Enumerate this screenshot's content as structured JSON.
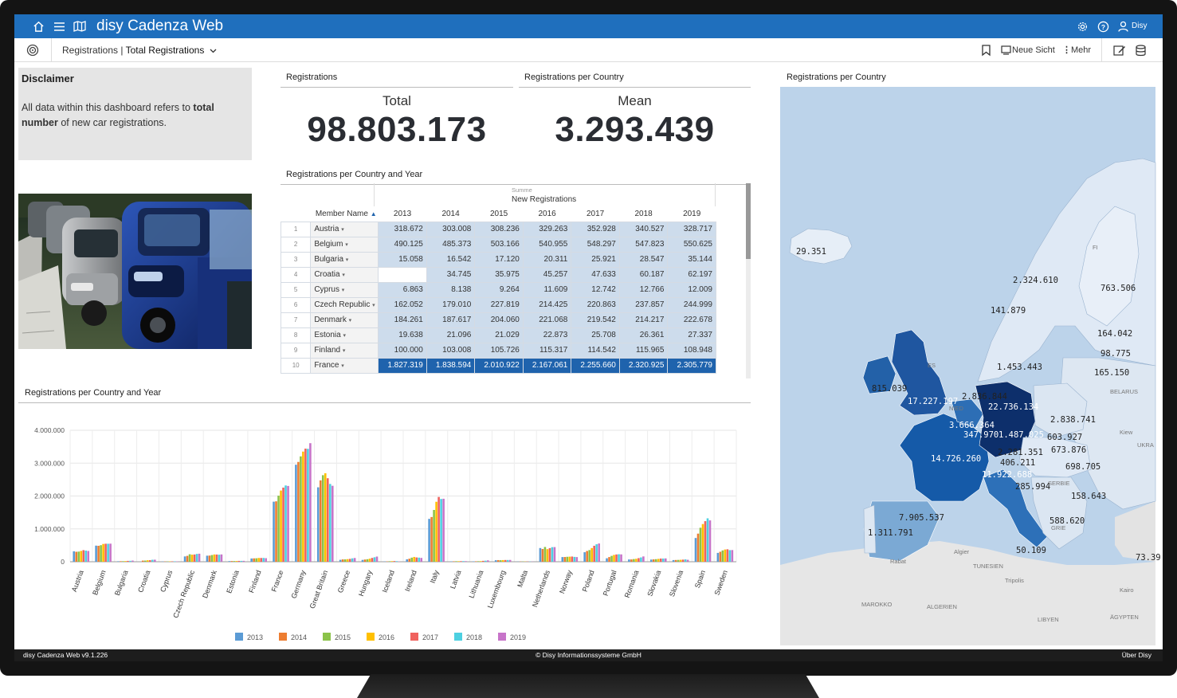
{
  "app": {
    "title": "disy Cadenza Web",
    "user": "Disy"
  },
  "breadcrumb": {
    "parent": "Registrations",
    "current": "Total Registrations"
  },
  "toolbar": {
    "new_view": "Neue Sicht",
    "more": "Mehr"
  },
  "disclaimer": {
    "title": "Disclaimer",
    "text_pre": "All data within this dashboard refers to ",
    "text_bold1": "total",
    "text_bold2": "number",
    "text_post": " of new car registrations."
  },
  "kpis": {
    "left": {
      "panel_title": "Registrations",
      "label": "Total",
      "value": "98.803.173"
    },
    "right": {
      "panel_title": "Registrations per Country",
      "label": "Mean",
      "value": "3.293.439"
    }
  },
  "table": {
    "panel_title": "Registrations per Country and Year",
    "aggregation": "Summe",
    "measure": "New Registrations",
    "member_header": "Member Name",
    "years": [
      "2013",
      "2014",
      "2015",
      "2016",
      "2017",
      "2018",
      "2019"
    ],
    "rows": [
      {
        "idx": "1",
        "name": "Austria",
        "values": [
          "318.672",
          "303.008",
          "308.236",
          "329.263",
          "352.928",
          "340.527",
          "328.717"
        ]
      },
      {
        "idx": "2",
        "name": "Belgium",
        "values": [
          "490.125",
          "485.373",
          "503.166",
          "540.955",
          "548.297",
          "547.823",
          "550.625"
        ]
      },
      {
        "idx": "3",
        "name": "Bulgaria",
        "values": [
          "15.058",
          "16.542",
          "17.120",
          "20.311",
          "25.921",
          "28.547",
          "35.144"
        ]
      },
      {
        "idx": "4",
        "name": "Croatia",
        "values": [
          "",
          "34.745",
          "35.975",
          "45.257",
          "47.633",
          "60.187",
          "62.197"
        ]
      },
      {
        "idx": "5",
        "name": "Cyprus",
        "values": [
          "6.863",
          "8.138",
          "9.264",
          "11.609",
          "12.742",
          "12.766",
          "12.009"
        ]
      },
      {
        "idx": "6",
        "name": "Czech Republic",
        "values": [
          "162.052",
          "179.010",
          "227.819",
          "214.425",
          "220.863",
          "237.857",
          "244.999"
        ]
      },
      {
        "idx": "7",
        "name": "Denmark",
        "values": [
          "184.261",
          "187.617",
          "204.060",
          "221.068",
          "219.542",
          "214.217",
          "222.678"
        ]
      },
      {
        "idx": "8",
        "name": "Estonia",
        "values": [
          "19.638",
          "21.096",
          "21.029",
          "22.873",
          "25.708",
          "26.361",
          "27.337"
        ]
      },
      {
        "idx": "9",
        "name": "Finland",
        "values": [
          "100.000",
          "103.008",
          "105.726",
          "115.317",
          "114.542",
          "115.965",
          "108.948"
        ]
      },
      {
        "idx": "10",
        "name": "France",
        "values": [
          "1.827.319",
          "1.838.594",
          "2.010.922",
          "2.167.061",
          "2.255.660",
          "2.320.925",
          "2.305.779"
        ],
        "highlight": true
      }
    ]
  },
  "chart_panel_title": "Registrations per Country and Year",
  "map_panel_title": "Registrations per Country",
  "map_labels": [
    "29.351",
    "2.324.610",
    "763.506",
    "141.879",
    "164.042",
    "98.775",
    "165.150",
    "1.453.443",
    "815.039",
    "2.836.844",
    "17.227.197",
    "22.736.134",
    "2.838.741",
    "3.666.364",
    "347.970",
    "1.487.025",
    "603.927",
    "2.281.351",
    "673.876",
    "14.726.260",
    "406.211",
    "698.705",
    "11.922.688",
    "285.994",
    "158.643",
    "7.905.537",
    "588.620",
    "1.311.791",
    "50.109",
    "73.39"
  ],
  "map_place_labels": [
    "FI",
    "ES",
    "NIED",
    "BELARUS",
    "UKRA",
    "SERBIE",
    "GRIE",
    "TUNESIEN",
    "ALGERIEN",
    "MAROKKO",
    "LIBYEN",
    "ÄGYPTEN",
    "Kairo",
    "Rabat",
    "Algier",
    "Tripolis",
    "Kiew"
  ],
  "footer": {
    "version": "disy Cadenza Web v9.1.226",
    "copyright": "© Disy Informationssysteme GmbH",
    "about": "Über Disy"
  },
  "chart_data": {
    "type": "bar",
    "categories": [
      "Austria",
      "Belgium",
      "Bulgaria",
      "Croatia",
      "Cyprus",
      "Czech Republic",
      "Denmark",
      "Estonia",
      "Finland",
      "France",
      "Germany",
      "Great Britain",
      "Greece",
      "Hungary",
      "Iceland",
      "Ireland",
      "Italy",
      "Latvia",
      "Lithuania",
      "Luxembourg",
      "Malta",
      "Netherlands",
      "Norway",
      "Poland",
      "Portugal",
      "Romania",
      "Slovakia",
      "Slovenia",
      "Spain",
      "Sweden"
    ],
    "ylim": [
      0,
      4000000
    ],
    "yticks": [
      "0",
      "1.000.000",
      "2.000.000",
      "3.000.000",
      "4.000.000"
    ],
    "legend_position": "bottom",
    "grid": true,
    "series": [
      {
        "name": "2013",
        "color": "#5b9bd5",
        "values": [
          318672,
          490125,
          15058,
          0,
          6863,
          162052,
          184261,
          19638,
          100000,
          1827319,
          2952431,
          2264737,
          58694,
          56138,
          7271,
          74364,
          1304648,
          10705,
          12244,
          46624,
          5960,
          417036,
          142151,
          289913,
          105921,
          70172,
          66383,
          50676,
          722703,
          269167
        ]
      },
      {
        "name": "2014",
        "color": "#ed7d31",
        "values": [
          303008,
          485373,
          16542,
          34745,
          8138,
          179010,
          187617,
          21096,
          103008,
          1838594,
          3036773,
          2476435,
          71218,
          67468,
          10106,
          92361,
          1360578,
          13349,
          13923,
          49793,
          6335,
          387553,
          144202,
          327709,
          142826,
          70263,
          72249,
          53250,
          855308,
          303866
        ]
      },
      {
        "name": "2015",
        "color": "#8bc34a",
        "values": [
          308236,
          503166,
          17120,
          35975,
          9264,
          227819,
          204060,
          21029,
          105726,
          2010922,
          3206042,
          2633503,
          71861,
          77171,
          15534,
          124945,
          1575737,
          15866,
          16568,
          46473,
          6863,
          449347,
          150686,
          355203,
          178503,
          81561,
          78858,
          55850,
          1034232,
          345108
        ]
      },
      {
        "name": "2016",
        "color": "#ffc000",
        "values": [
          329263,
          540955,
          20311,
          45257,
          11609,
          214425,
          221068,
          22873,
          115317,
          2167061,
          3351607,
          2692786,
          79104,
          93845,
          18424,
          146672,
          1824968,
          16608,
          18845,
          50561,
          7012,
          382825,
          154603,
          416123,
          207345,
          91227,
          87302,
          59206,
          1147007,
          372318
        ]
      },
      {
        "name": "2017",
        "color": "#f0625e",
        "values": [
          352928,
          548297,
          25921,
          47633,
          12742,
          220863,
          219542,
          25708,
          114542,
          2255660,
          3441262,
          2540617,
          87826,
          116398,
          21364,
          131334,
          1971345,
          17923,
          27183,
          52775,
          6862,
          414306,
          158650,
          486352,
          222134,
          110152,
          97088,
          64217,
          1234931,
          379393
        ]
      },
      {
        "name": "2018",
        "color": "#4dd0e1",
        "values": [
          340527,
          547823,
          28547,
          60187,
          12766,
          237857,
          214217,
          26361,
          115965,
          2320925,
          3435778,
          2367147,
          103431,
          136386,
          18068,
          125557,
          1910025,
          19526,
          32464,
          52811,
          6855,
          443812,
          147929,
          531889,
          228290,
          130919,
          98000,
          71347,
          1321438,
          353729
        ]
      },
      {
        "name": "2019",
        "color": "#c774c9",
        "values": [
          328717,
          550625,
          35144,
          62197,
          12009,
          244999,
          222678,
          27337,
          108948,
          2305779,
          3607258,
          2311140,
          114109,
          157900,
          10716,
          117109,
          1916949,
          18688,
          42153,
          55008,
          6627,
          446044,
          142381,
          555598,
          223799,
          161562,
          101568,
          59661,
          1258260,
          356036
        ]
      }
    ]
  }
}
